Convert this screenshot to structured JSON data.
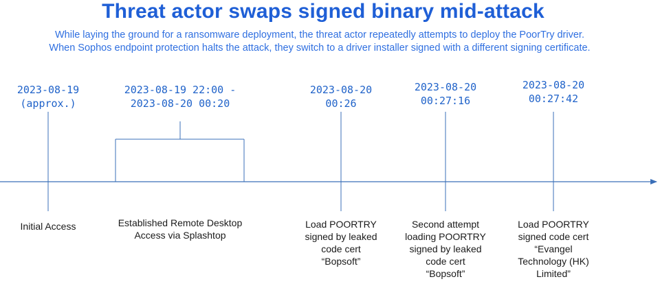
{
  "title": "Threat actor swaps signed binary mid-attack",
  "subtitle": "While laying the ground for a ransomware deployment, the threat actor repeatedly attempts to deploy the PoorTry driver. When Sophos endpoint protection halts the attack, they switch to a driver installer signed with a different signing certificate.",
  "colors": {
    "title": "#1f5fd6",
    "subtitle": "#2f6fe0",
    "dates": "#1f62c9",
    "axis": "#3a6fb8",
    "events": "#1a1a1a"
  },
  "milestones": [
    {
      "date": [
        "2023-08-19",
        "(approx.)"
      ],
      "event": [
        "Initial Access"
      ]
    },
    {
      "date": [
        "2023-08-19 22:00 -",
        "2023-08-20 00:20"
      ],
      "event": [
        "Established Remote Desktop",
        "Access via Splashtop"
      ]
    },
    {
      "date": [
        "2023-08-20",
        "00:26"
      ],
      "event": [
        "Load POORTRY",
        "signed by leaked",
        "code cert",
        "“Bopsoft”"
      ]
    },
    {
      "date": [
        "2023-08-20",
        "00:27:16"
      ],
      "event": [
        "Second attempt",
        "loading POORTRY",
        "signed by leaked",
        "code cert",
        "“Bopsoft”"
      ]
    },
    {
      "date": [
        "2023-08-20",
        "00:27:42"
      ],
      "event": [
        "Load POORTRY",
        "signed code cert",
        "“Evangel",
        "Technology (HK)",
        "Limited”"
      ]
    }
  ]
}
